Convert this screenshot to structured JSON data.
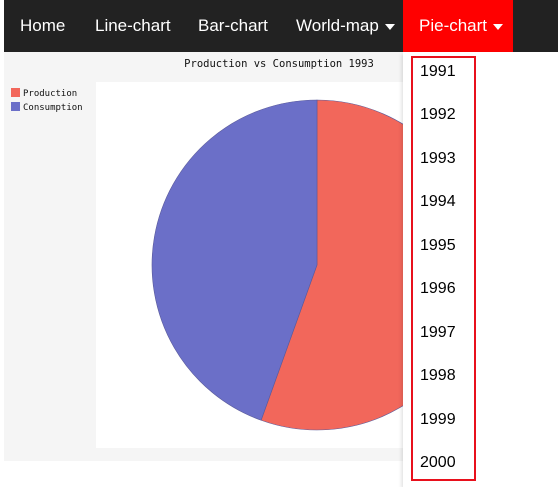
{
  "navbar": {
    "items": [
      {
        "label": "Home",
        "has_caret": false,
        "active": false
      },
      {
        "label": "Line-chart",
        "has_caret": false,
        "active": false
      },
      {
        "label": "Bar-chart",
        "has_caret": false,
        "active": false
      },
      {
        "label": "World-map",
        "has_caret": true,
        "active": false
      },
      {
        "label": "Pie-chart",
        "has_caret": true,
        "active": true
      }
    ]
  },
  "dropdown": {
    "items": [
      "1991",
      "1992",
      "1993",
      "1994",
      "1995",
      "1996",
      "1997",
      "1998",
      "1999",
      "2000"
    ]
  },
  "colors": {
    "navbar_bg": "#222222",
    "active_nav": "#ff0000",
    "highlight_border": "#e8101c",
    "production": "#f2675b",
    "consumption": "#6b6fc8"
  },
  "chart_data": {
    "type": "pie",
    "title": "Production vs Consumption 1993",
    "legend_position": "left",
    "categories": [
      "Production",
      "Consumption"
    ],
    "values": [
      55.5,
      44.5
    ],
    "colors": [
      "#f2675b",
      "#6b6fc8"
    ]
  }
}
